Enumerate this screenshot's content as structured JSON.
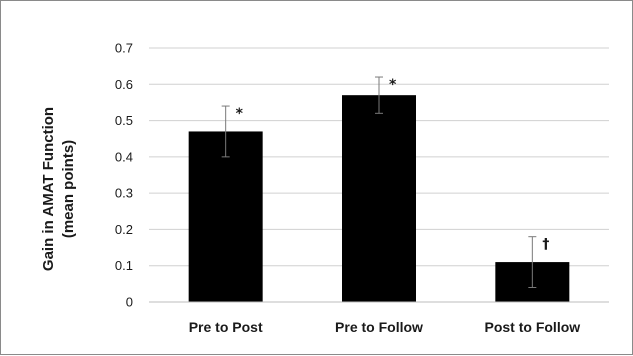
{
  "chart_data": {
    "type": "bar",
    "title": "",
    "xlabel": "",
    "ylabel_lines": [
      "Gain in AMAT Function",
      "(mean points)"
    ],
    "ylim": [
      0,
      0.7
    ],
    "yticks": [
      "0",
      "0.1",
      "0.2",
      "0.3",
      "0.4",
      "0.5",
      "0.6",
      "0.7"
    ],
    "grid": true,
    "legend": "none",
    "bar_color": "#000000",
    "categories": [
      "Pre to Post",
      "Pre to Follow",
      "Post to Follow"
    ],
    "values": [
      0.47,
      0.57,
      0.11
    ],
    "error_low": [
      0.4,
      0.52,
      0.04
    ],
    "error_high": [
      0.54,
      0.62,
      0.18
    ],
    "annotations": [
      "*",
      "*",
      "†"
    ]
  }
}
